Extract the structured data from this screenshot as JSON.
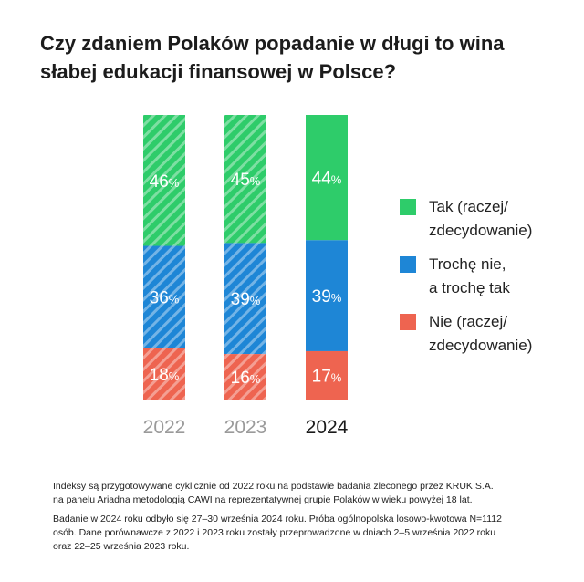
{
  "title_lines": [
    "Czy zdaniem Polaków popadanie w długi to wina",
    "słabej edukacji finansowej w Polsce?"
  ],
  "colors": {
    "tak": "#2ecc6a",
    "troche": "#1e86d6",
    "nie": "#ee6450",
    "faded_year": "#9a9a9a",
    "current_year": "#1a1a1a"
  },
  "chart_data": {
    "type": "bar",
    "stacked": true,
    "normalized_percent": true,
    "categories": [
      "2022",
      "2023",
      "2024"
    ],
    "series": [
      {
        "name": "Tak (raczej/ zdecydowanie)",
        "values": [
          46,
          45,
          44
        ]
      },
      {
        "name": "Trochę nie, a trochę tak",
        "values": [
          36,
          39,
          39
        ]
      },
      {
        "name": "Nie (raczej/ zdecydowanie)",
        "values": [
          18,
          16,
          17
        ]
      }
    ],
    "legend_placement": "right",
    "hatched_categories": [
      "2022",
      "2023"
    ]
  },
  "legend": [
    {
      "lines": [
        "Tak (raczej/",
        "zdecydowanie)"
      ],
      "color": "#2ecc6a"
    },
    {
      "lines": [
        "Trochę nie,",
        "a trochę tak"
      ],
      "color": "#1e86d6"
    },
    {
      "lines": [
        "Nie (raczej/",
        "zdecydowanie)"
      ],
      "color": "#ee6450"
    }
  ],
  "notes": [
    [
      "Indeksy są przygotowywane cyklicznie od 2022 roku na podstawie badania zleconego przez KRUK S.A.",
      "na panelu Ariadna metodologią CAWI na reprezentatywnej grupie Polaków w wieku powyżej 18 lat."
    ],
    [
      "Badanie w 2024 roku odbyło się 27–30 września 2024 roku. Próba ogólnopolska losowo-kwotowa N=1112",
      "osób. Dane porównawcze z 2022 i 2023 roku zostały przeprowadzone w dniach 2–5 września 2022 roku",
      "oraz 22–25 września 2023 roku."
    ]
  ]
}
